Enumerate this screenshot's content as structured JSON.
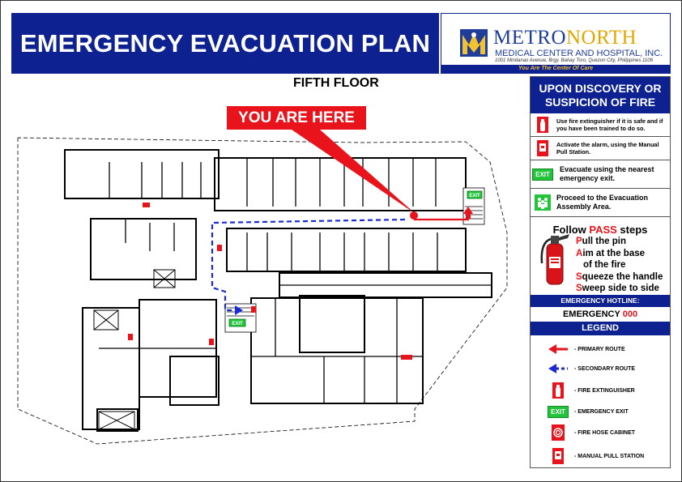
{
  "header": {
    "title": "EMERGENCY EVACUATION PLAN",
    "logo_name_a": "METRO",
    "logo_name_b": "NORTH",
    "logo_sub": "MEDICAL CENTER AND HOSPITAL, INC.",
    "logo_address": "1001 Mindanao Avenue, Brgy. Bahay Toro, Quezon City, Philippines 1106",
    "logo_tagline": "You Are The Center Of Care"
  },
  "floor": "FIFTH FLOOR",
  "marker": {
    "label": "YOU ARE HERE"
  },
  "map": {
    "exit_sign": "EXIT"
  },
  "panel": {
    "heading": "UPON DISCOVERY OR SUSPICION OF FIRE",
    "steps": [
      {
        "icon": "fire-extinguisher-icon",
        "text": "Use fire extinguisher if it is safe and if you have been trained to do so."
      },
      {
        "icon": "manual-pull-station-icon",
        "text": "Activate the alarm, using the Manual Pull Station."
      },
      {
        "icon": "exit-sign-icon",
        "badge": "EXIT",
        "text": "Evacuate using the nearest emergency exit."
      },
      {
        "icon": "assembly-area-icon",
        "text": "Proceed to the Evacuation Assembly Area."
      }
    ],
    "pass_prefix": "Follow ",
    "pass_word": "PASS",
    "pass_suffix": " steps",
    "pass": [
      {
        "key": "P",
        "rest": "ull the pin"
      },
      {
        "key": "A",
        "rest": "im at the base"
      },
      {
        "key": "",
        "rest": "   of the fire"
      },
      {
        "key": "S",
        "rest": "queeze the handle"
      },
      {
        "key": "S",
        "rest": "weep side to side"
      }
    ],
    "hotline_label": "EMERGENCY HOTLINE:",
    "hotline_name": "EMERGENCY ",
    "hotline_number": "000",
    "legend_title": "LEGEND",
    "legend": [
      {
        "icon": "red-arrow-icon",
        "label": "- PRIMARY ROUTE"
      },
      {
        "icon": "blue-dashed-arrow-icon",
        "label": "- SECONDARY ROUTE"
      },
      {
        "icon": "fire-extinguisher-icon",
        "label": "- FIRE EXTINGUISHER"
      },
      {
        "icon": "exit-sign-icon",
        "badge": "EXIT",
        "label": "- EMERGENCY EXIT"
      },
      {
        "icon": "fire-hose-cabinet-icon",
        "label": "- FIRE HOSE CABINET"
      },
      {
        "icon": "manual-pull-station-icon",
        "label": "- MANUAL PULL STATION"
      }
    ]
  },
  "colors": {
    "navy": "#0d2190",
    "red": "#e8131b",
    "exit_green": "#22c43a",
    "route_blue": "#1a2bd6"
  }
}
